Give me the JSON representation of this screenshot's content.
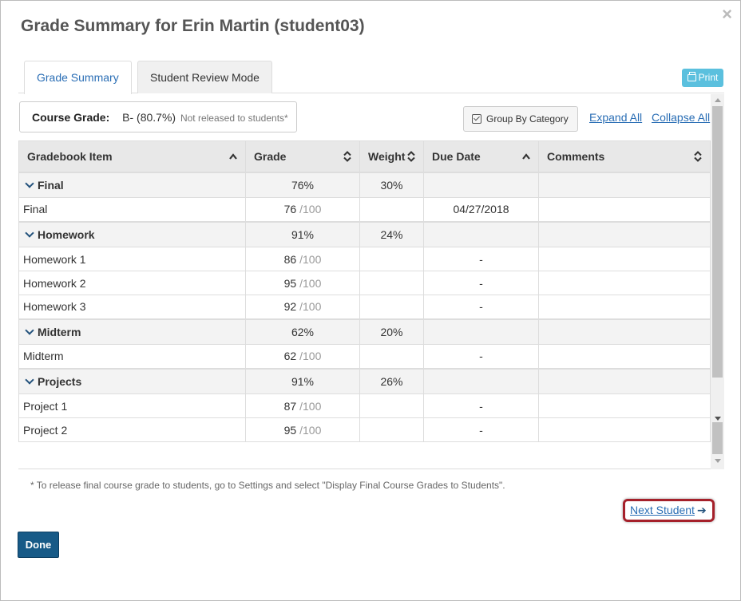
{
  "dialog": {
    "title": "Grade Summary for Erin Martin (student03)",
    "close_symbol": "×"
  },
  "tabs": [
    {
      "label": "Grade Summary",
      "active": true
    },
    {
      "label": "Student Review Mode",
      "active": false
    }
  ],
  "print_button": {
    "label": "Print",
    "icon": "print-icon"
  },
  "course_grade": {
    "label": "Course Grade:",
    "value": "B- (80.7%)",
    "note": "Not released to students*"
  },
  "controls": {
    "group_by_category": "Group By Category",
    "group_by_checked": true,
    "expand_all": "Expand All",
    "collapse_all": "Collapse All"
  },
  "table": {
    "headers": [
      "Gradebook Item",
      "Grade",
      "Weight",
      "Due Date",
      "Comments"
    ],
    "rows": [
      {
        "type": "category",
        "name": "Final",
        "grade": "76%",
        "weight": "30%",
        "due": "",
        "comments": ""
      },
      {
        "type": "item",
        "name": "Final",
        "score": "76",
        "out_of": "/100",
        "weight": "",
        "due": "04/27/2018",
        "comments": ""
      },
      {
        "type": "category",
        "name": "Homework",
        "grade": "91%",
        "weight": "24%",
        "due": "",
        "comments": ""
      },
      {
        "type": "item",
        "name": "Homework 1",
        "score": "86",
        "out_of": "/100",
        "weight": "",
        "due": "-",
        "comments": ""
      },
      {
        "type": "item",
        "name": "Homework 2",
        "score": "95",
        "out_of": "/100",
        "weight": "",
        "due": "-",
        "comments": ""
      },
      {
        "type": "item",
        "name": "Homework 3",
        "score": "92",
        "out_of": "/100",
        "weight": "",
        "due": "-",
        "comments": ""
      },
      {
        "type": "category",
        "name": "Midterm",
        "grade": "62%",
        "weight": "20%",
        "due": "",
        "comments": ""
      },
      {
        "type": "item",
        "name": "Midterm",
        "score": "62",
        "out_of": "/100",
        "weight": "",
        "due": "-",
        "comments": ""
      },
      {
        "type": "category",
        "name": "Projects",
        "grade": "91%",
        "weight": "26%",
        "due": "",
        "comments": ""
      },
      {
        "type": "item",
        "name": "Project 1",
        "score": "87",
        "out_of": "/100",
        "weight": "",
        "due": "-",
        "comments": ""
      },
      {
        "type": "item",
        "name": "Project 2",
        "score": "95",
        "out_of": "/100",
        "weight": "",
        "due": "-",
        "comments": ""
      }
    ]
  },
  "footnote": "* To release final course grade to students, go to Settings and select \"Display Final Course Grades to Students\".",
  "next_student": {
    "label": "Next Student",
    "icon": "arrow-right-icon"
  },
  "done_button": {
    "label": "Done"
  },
  "colors": {
    "link": "#2a6eb5",
    "done_bg": "#175a87",
    "print_bg": "#5bc0de",
    "highlight": "#a5202a"
  }
}
